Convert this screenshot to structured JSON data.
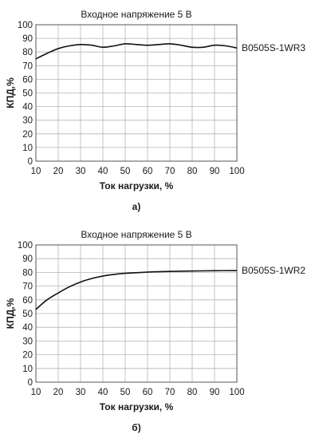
{
  "chart_data": [
    {
      "type": "line",
      "title": "Входное напряжение 5 В",
      "xlabel": "Ток нагрузки, %",
      "ylabel": "КПД,%",
      "panel_label": "а)",
      "xlim": [
        10,
        100
      ],
      "ylim": [
        0,
        100
      ],
      "x_ticks": [
        10,
        20,
        30,
        40,
        50,
        60,
        70,
        80,
        90,
        100
      ],
      "y_ticks": [
        0,
        10,
        20,
        30,
        40,
        50,
        60,
        70,
        80,
        90,
        100
      ],
      "grid": true,
      "series": [
        {
          "name": "B0505S-1WR3",
          "x": [
            10,
            15,
            20,
            25,
            30,
            35,
            40,
            45,
            50,
            55,
            60,
            65,
            70,
            75,
            80,
            85,
            90,
            95,
            100
          ],
          "y": [
            75,
            79,
            82.5,
            84.5,
            85.5,
            85,
            83.5,
            84.5,
            86,
            85.5,
            85,
            85.5,
            86,
            85,
            83.5,
            83.5,
            85,
            84.5,
            83
          ],
          "color": "#111111"
        }
      ]
    },
    {
      "type": "line",
      "title": "Входное напряжение 5 В",
      "xlabel": "Ток нагрузки, %",
      "ylabel": "КПД,%",
      "panel_label": "б)",
      "xlim": [
        10,
        100
      ],
      "ylim": [
        0,
        100
      ],
      "x_ticks": [
        10,
        20,
        30,
        40,
        50,
        60,
        70,
        80,
        90,
        100
      ],
      "y_ticks": [
        0,
        10,
        20,
        30,
        40,
        50,
        60,
        70,
        80,
        90,
        100
      ],
      "grid": true,
      "series": [
        {
          "name": "B0505S-1WR2",
          "x": [
            10,
            15,
            20,
            25,
            30,
            35,
            40,
            45,
            50,
            60,
            70,
            80,
            90,
            100
          ],
          "y": [
            53,
            60,
            65,
            69.5,
            73,
            75.5,
            77.3,
            78.5,
            79.3,
            80.2,
            80.7,
            81,
            81.2,
            81.3
          ],
          "color": "#111111"
        }
      ]
    }
  ]
}
